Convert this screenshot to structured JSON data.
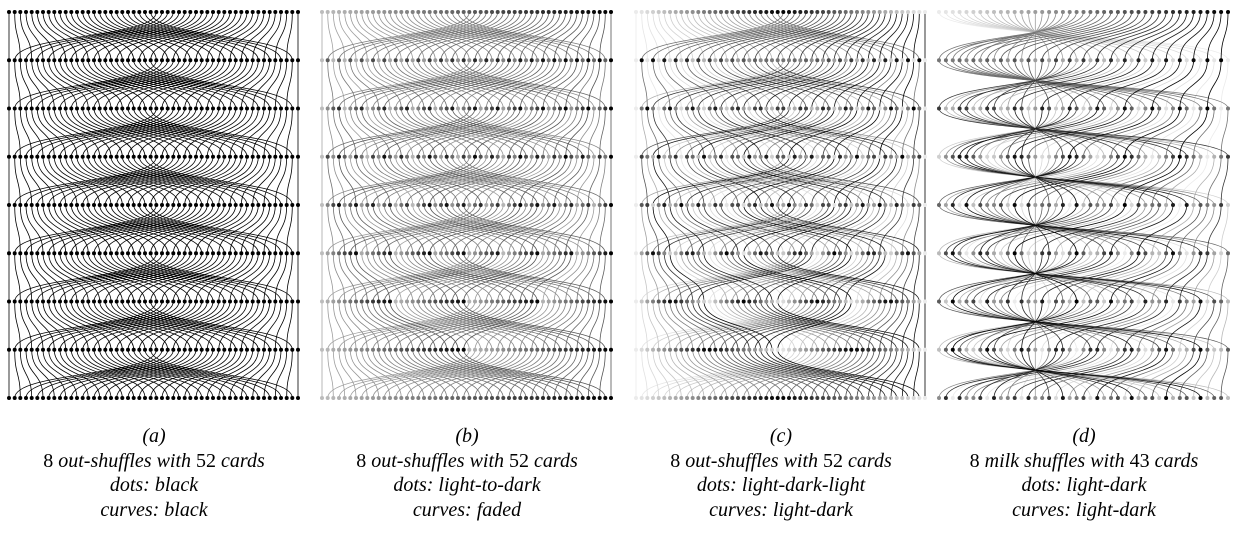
{
  "panels": [
    {
      "id": "a",
      "label": "(a)",
      "count": "8",
      "shuffle": "out-shuffles",
      "mid": "with",
      "cards": "52",
      "unit": "cards",
      "dots_line": "dots: black",
      "curves_line": "curves: black",
      "shuffle_type": "out",
      "n_cards": 52,
      "n_shuffles": 8,
      "dot_style": "black",
      "curve_style": "black"
    },
    {
      "id": "b",
      "label": "(b)",
      "count": "8",
      "shuffle": "out-shuffles",
      "mid": "with",
      "cards": "52",
      "unit": "cards",
      "dots_line": "dots: light-to-dark",
      "curves_line": "curves: faded",
      "shuffle_type": "out",
      "n_cards": 52,
      "n_shuffles": 8,
      "dot_style": "light-to-dark",
      "curve_style": "faded"
    },
    {
      "id": "c",
      "label": "(c)",
      "count": "8",
      "shuffle": "out-shuffles",
      "mid": "with",
      "cards": "52",
      "unit": "cards",
      "dots_line": "dots: light-dark-light",
      "curves_line": "curves: light-dark",
      "shuffle_type": "out",
      "n_cards": 52,
      "n_shuffles": 8,
      "dot_style": "light-dark-light",
      "curve_style": "light-dark"
    },
    {
      "id": "d",
      "label": "(d)",
      "count": "8",
      "shuffle": "milk shuffles",
      "mid": "with",
      "cards": "43",
      "unit": "cards",
      "dots_line": "dots: light-dark",
      "curves_line": "curves: light-dark",
      "shuffle_type": "milk",
      "n_cards": 43,
      "n_shuffles": 8,
      "dot_style": "light-dark",
      "curve_style": "light-dark"
    }
  ]
}
